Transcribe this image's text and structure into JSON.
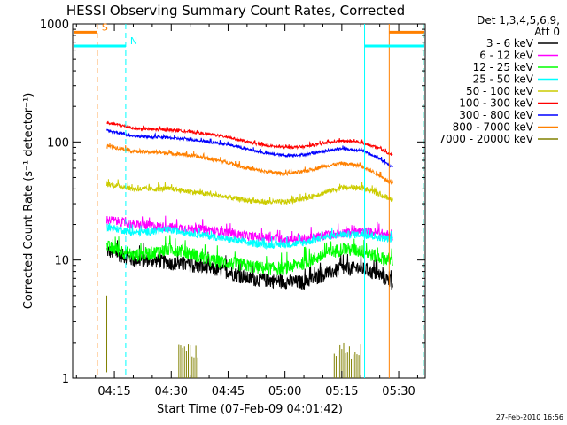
{
  "chart_data": {
    "type": "line",
    "title": "HESSI Observing Summary Count Rates, Corrected",
    "xlabel": "Start Time (07-Feb-09 04:01:42)",
    "ylabel": "Corrected Count Rate (s⁻¹ detector⁻¹)",
    "yscale": "log",
    "xlim_minutes": [
      4.0,
      97.0
    ],
    "ylim": [
      1,
      1000
    ],
    "x_tick_labels": [
      "04:15",
      "04:30",
      "04:45",
      "05:00",
      "05:15",
      "05:30"
    ],
    "x_tick_minutes": [
      15,
      30,
      45,
      60,
      75,
      90
    ],
    "y_tick_labels": [
      "1",
      "10",
      "100",
      "1000"
    ],
    "y_tick_values": [
      1,
      10,
      100,
      1000
    ],
    "legend_header": [
      "Det 1,3,4,5,6,9,",
      "Att 0"
    ],
    "legend_position": "outside-right-top",
    "data_start_minute": 13.0,
    "data_end_minute": 88.5,
    "x_sample_minutes": [
      13,
      17,
      20,
      25,
      30,
      35,
      40,
      45,
      50,
      55,
      60,
      65,
      70,
      75,
      80,
      85,
      88
    ],
    "series": [
      {
        "name": "3 - 6 keV",
        "color": "#000000",
        "values": [
          12,
          11,
          10,
          10,
          9.5,
          9,
          8.5,
          8,
          7,
          6.8,
          6.6,
          6.5,
          7.5,
          8.5,
          8.5,
          7.5,
          6.5
        ]
      },
      {
        "name": "6 - 12 keV",
        "color": "#ff00ff",
        "values": [
          22,
          21,
          20,
          19.5,
          19,
          18.5,
          18,
          17,
          16,
          15.5,
          15,
          15,
          16,
          17,
          17.5,
          17,
          16
        ]
      },
      {
        "name": "12 - 25 keV",
        "color": "#00ff00",
        "values": [
          13,
          12,
          11,
          11.5,
          12.5,
          11.5,
          10,
          9.5,
          9,
          8.5,
          8.5,
          9.5,
          11,
          12.5,
          12,
          10.5,
          10
        ]
      },
      {
        "name": "25 - 50 keV",
        "color": "#00ffff",
        "values": [
          19,
          18,
          17,
          17.5,
          18,
          17,
          16,
          15,
          14,
          13.5,
          13.5,
          14,
          15.5,
          16.5,
          16.5,
          15.5,
          15
        ]
      },
      {
        "name": "50 - 100 keV",
        "color": "#cccc00",
        "values": [
          44,
          42,
          40,
          40,
          40,
          38,
          36,
          34,
          32,
          31,
          31,
          33,
          37,
          41,
          41,
          36,
          32
        ]
      },
      {
        "name": "100 - 300 keV",
        "color": "#ff0000",
        "values": [
          145,
          138,
          130,
          128,
          126,
          122,
          116,
          110,
          100,
          93,
          90,
          91,
          97,
          102,
          99,
          88,
          78
        ]
      },
      {
        "name": "300 - 800 keV",
        "color": "#0000ff",
        "values": [
          125,
          118,
          112,
          110,
          108,
          105,
          100,
          95,
          87,
          80,
          77,
          78,
          83,
          88,
          85,
          72,
          62
        ]
      },
      {
        "name": "800 - 7000 keV",
        "color": "#ff8000",
        "values": [
          92,
          88,
          83,
          82,
          80,
          77,
          72,
          67,
          60,
          56,
          54,
          56,
          62,
          66,
          63,
          52,
          44
        ]
      },
      {
        "name": "7000 - 20000 keV",
        "color": "#808000",
        "values": [
          1,
          1,
          1,
          1,
          1,
          1,
          1,
          1,
          1,
          1,
          1,
          1,
          1,
          1,
          1,
          1,
          1
        ]
      }
    ],
    "annotations": [
      {
        "label": "S",
        "color": "#ff8000",
        "from_minute": 4.0,
        "to_minute": 10.5,
        "value": 850,
        "dashed_at_minute": 10.5,
        "solid_from_minute": 87.5,
        "dashed_end_minute": 96.5
      },
      {
        "label": "N",
        "color": "#00ffff",
        "from_minute": 4.0,
        "to_minute": 18.0,
        "value": 650,
        "dashed_at_minute": 18.0,
        "solid_from_minute": 81.0,
        "dashed_end_minute": 96.5
      }
    ],
    "spike_groups_7000_20000": [
      {
        "from_minute": 32,
        "to_minute": 37,
        "peak": 2.0
      },
      {
        "from_minute": 73,
        "to_minute": 80,
        "peak": 2.0
      }
    ],
    "timestamp": "27-Feb-2010 16:56"
  }
}
